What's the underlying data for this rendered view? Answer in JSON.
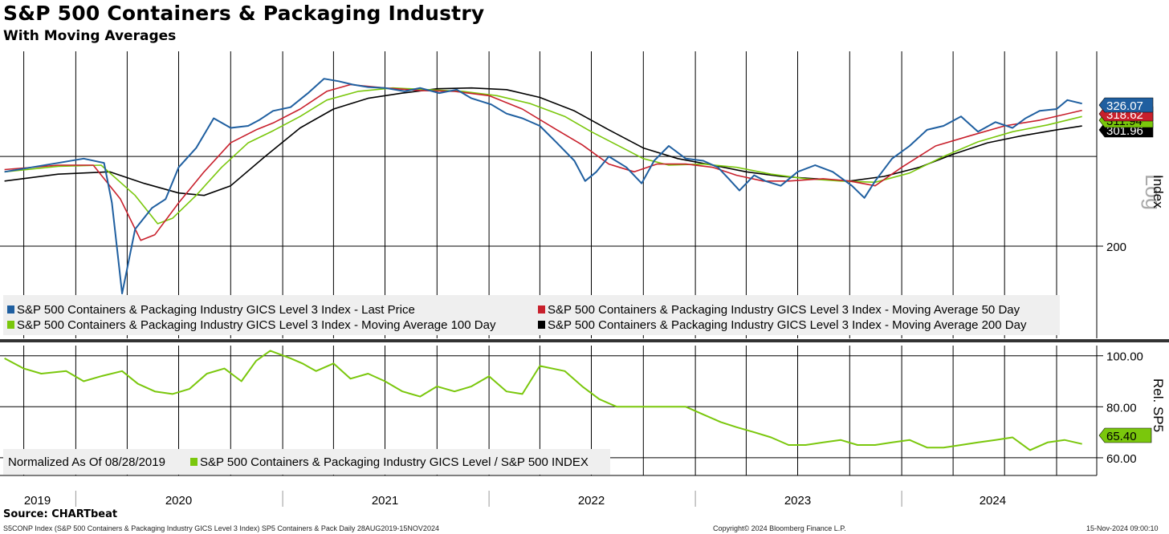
{
  "header": {
    "title": "S&P 500 Containers & Packaging Industry",
    "subtitle": "With Moving Averages"
  },
  "footer": {
    "source": "Source: CHARTbeat",
    "ticker_info": "S5CONP Index (S&P 500 Containers & Packaging Industry GICS Level 3 Index) SP5 Containers & Pack  Daily 28AUG2019-15NOV2024",
    "copyright": "Copyright© 2024 Bloomberg Finance L.P.",
    "timestamp": "15-Nov-2024 09:00:10"
  },
  "chart_data": [
    {
      "type": "line",
      "panel": "price",
      "scale": "log",
      "ylabel": "Index",
      "scale_label": "Log",
      "y_ticks": [
        200
      ],
      "ylim": [
        145,
        390
      ],
      "grid": true,
      "legend_position": "bottom-left",
      "last_values": {
        "last_price": "326.07",
        "ma50": "318.62",
        "ma100": "311.94",
        "ma200": "301.96"
      },
      "series": [
        {
          "name": "S&P 500 Containers & Packaging Industry GICS Level 3 Index - Last Price",
          "color": "#1f5fa0",
          "x": [
            "2019-08-28",
            "2019-10-15",
            "2019-12-01",
            "2020-01-15",
            "2020-02-20",
            "2020-03-05",
            "2020-03-23",
            "2020-04-15",
            "2020-05-15",
            "2020-06-08",
            "2020-07-01",
            "2020-08-01",
            "2020-09-01",
            "2020-10-01",
            "2020-11-01",
            "2020-11-20",
            "2020-12-15",
            "2021-01-15",
            "2021-02-15",
            "2021-03-15",
            "2021-04-10",
            "2021-05-05",
            "2021-06-01",
            "2021-07-01",
            "2021-08-05",
            "2021-09-01",
            "2021-10-05",
            "2021-11-05",
            "2021-12-01",
            "2022-01-05",
            "2022-02-01",
            "2022-03-01",
            "2022-04-01",
            "2022-05-01",
            "2022-06-01",
            "2022-06-20",
            "2022-07-10",
            "2022-08-01",
            "2022-09-01",
            "2022-09-28",
            "2022-10-20",
            "2022-11-15",
            "2022-12-15",
            "2023-01-15",
            "2023-02-10",
            "2023-03-01",
            "2023-03-20",
            "2023-04-15",
            "2023-05-05",
            "2023-06-01",
            "2023-07-01",
            "2023-08-01",
            "2023-09-01",
            "2023-10-05",
            "2023-10-27",
            "2023-11-15",
            "2023-12-15",
            "2024-01-15",
            "2024-02-15",
            "2024-03-15",
            "2024-04-15",
            "2024-05-15",
            "2024-06-15",
            "2024-07-15",
            "2024-08-07",
            "2024-09-01",
            "2024-10-01",
            "2024-10-20",
            "2024-11-15"
          ],
          "values": [
            258,
            262,
            266,
            270,
            266,
            232,
            170,
            212,
            228,
            235,
            262,
            280,
            310,
            300,
            302,
            308,
            318,
            322,
            338,
            355,
            352,
            348,
            345,
            344,
            340,
            344,
            338,
            342,
            332,
            325,
            315,
            310,
            302,
            285,
            268,
            250,
            258,
            272,
            262,
            248,
            268,
            282,
            270,
            268,
            262,
            252,
            242,
            255,
            250,
            246,
            258,
            264,
            258,
            246,
            236,
            250,
            270,
            282,
            298,
            302,
            312,
            296,
            306,
            300,
            310,
            318,
            320,
            330,
            326
          ]
        },
        {
          "name": "S&P 500 Containers & Packaging Industry GICS Level 3 Index - Moving Average 50 Day",
          "color": "#c8202c",
          "x": [
            "2019-08-28",
            "2019-12-01",
            "2020-02-01",
            "2020-03-20",
            "2020-04-25",
            "2020-05-20",
            "2020-07-01",
            "2020-08-15",
            "2020-10-01",
            "2020-11-15",
            "2020-12-15",
            "2021-02-01",
            "2021-03-20",
            "2021-05-01",
            "2021-07-01",
            "2021-09-01",
            "2021-11-01",
            "2022-01-01",
            "2022-03-01",
            "2022-05-01",
            "2022-06-15",
            "2022-08-01",
            "2022-09-15",
            "2022-10-25",
            "2022-12-15",
            "2023-02-01",
            "2023-03-15",
            "2023-05-01",
            "2023-06-15",
            "2023-08-15",
            "2023-10-01",
            "2023-11-15",
            "2024-01-01",
            "2024-03-01",
            "2024-05-01",
            "2024-07-01",
            "2024-09-01",
            "2024-11-15"
          ],
          "values": [
            260,
            264,
            264,
            235,
            204,
            208,
            232,
            258,
            285,
            298,
            305,
            320,
            340,
            348,
            344,
            341,
            340,
            335,
            320,
            298,
            283,
            265,
            258,
            265,
            265,
            262,
            255,
            250,
            250,
            252,
            250,
            246,
            262,
            282,
            292,
            302,
            308,
            318.62
          ]
        },
        {
          "name": "S&P 500 Containers & Packaging Industry GICS Level 3 Index - Moving Average 100 Day",
          "color": "#7ac70c",
          "x": [
            "2019-08-28",
            "2019-12-01",
            "2020-02-15",
            "2020-04-15",
            "2020-05-25",
            "2020-06-20",
            "2020-08-01",
            "2020-09-15",
            "2020-11-01",
            "2020-12-15",
            "2021-02-01",
            "2021-03-20",
            "2021-05-15",
            "2021-07-15",
            "2021-09-15",
            "2021-11-15",
            "2022-01-15",
            "2022-03-15",
            "2022-05-15",
            "2022-07-01",
            "2022-08-15",
            "2022-10-01",
            "2022-11-15",
            "2023-01-15",
            "2023-03-15",
            "2023-05-15",
            "2023-07-15",
            "2023-09-15",
            "2023-11-15",
            "2024-01-15",
            "2024-03-15",
            "2024-05-15",
            "2024-07-15",
            "2024-09-15",
            "2024-11-15"
          ],
          "values": [
            258,
            263,
            264,
            238,
            216,
            220,
            238,
            262,
            285,
            297,
            312,
            330,
            340,
            344,
            342,
            340,
            335,
            326,
            312,
            296,
            283,
            270,
            264,
            265,
            262,
            256,
            252,
            250,
            249,
            257,
            272,
            286,
            296,
            303,
            311.94
          ]
        },
        {
          "name": "S&P 500 Containers & Packaging Industry GICS Level 3 Index - Moving Average 200 Day",
          "color": "#000000",
          "x": [
            "2019-08-28",
            "2019-12-01",
            "2020-03-01",
            "2020-05-01",
            "2020-07-01",
            "2020-08-15",
            "2020-10-01",
            "2020-12-01",
            "2021-02-01",
            "2021-04-01",
            "2021-06-01",
            "2021-08-01",
            "2021-10-01",
            "2021-12-01",
            "2022-02-01",
            "2022-04-01",
            "2022-06-01",
            "2022-08-01",
            "2022-10-01",
            "2022-12-01",
            "2023-02-01",
            "2023-04-01",
            "2023-06-01",
            "2023-08-01",
            "2023-10-01",
            "2023-12-01",
            "2024-02-01",
            "2024-04-01",
            "2024-06-01",
            "2024-08-01",
            "2024-10-01",
            "2024-11-15"
          ],
          "values": [
            250,
            256,
            258,
            248,
            240,
            238,
            246,
            272,
            300,
            320,
            332,
            338,
            343,
            344,
            342,
            333,
            318,
            298,
            280,
            270,
            264,
            258,
            254,
            252,
            250,
            254,
            262,
            274,
            285,
            292,
            298,
            301.96
          ]
        }
      ]
    },
    {
      "type": "line",
      "panel": "relative",
      "ylabel": "Rel. SP5",
      "y_ticks": [
        100.0,
        80.0,
        60.0
      ],
      "ylim": [
        54,
        104
      ],
      "grid": true,
      "legend_position": "bottom-left",
      "legend_note": "Normalized As Of 08/28/2019",
      "last_value": "65.40",
      "series": [
        {
          "name": "S&P 500 Containers & Packaging Industry GICS Level / S&P 500 INDEX",
          "color": "#7ac70c",
          "x": [
            "2019-08-28",
            "2019-10-01",
            "2019-11-01",
            "2019-12-15",
            "2020-01-15",
            "2020-02-15",
            "2020-03-23",
            "2020-04-20",
            "2020-05-20",
            "2020-06-20",
            "2020-07-20",
            "2020-08-20",
            "2020-09-20",
            "2020-10-20",
            "2020-11-15",
            "2020-12-10",
            "2021-01-15",
            "2021-02-05",
            "2021-03-01",
            "2021-04-01",
            "2021-05-01",
            "2021-06-01",
            "2021-07-01",
            "2021-08-01",
            "2021-09-01",
            "2021-10-01",
            "2021-11-01",
            "2021-12-01",
            "2022-01-01",
            "2022-02-01",
            "2022-03-01",
            "2022-04-01",
            "2022-05-15",
            "2022-06-15",
            "2022-07-15",
            "2022-08-15",
            "2022-09-15",
            "2022-10-15",
            "2022-11-15",
            "2022-12-15",
            "2023-01-15",
            "2023-02-15",
            "2023-03-15",
            "2023-04-15",
            "2023-05-15",
            "2023-06-15",
            "2023-07-15",
            "2023-08-15",
            "2023-09-15",
            "2023-10-15",
            "2023-11-15",
            "2023-12-15",
            "2024-01-15",
            "2024-02-15",
            "2024-03-15",
            "2024-04-15",
            "2024-05-15",
            "2024-06-15",
            "2024-07-15",
            "2024-08-15",
            "2024-09-15",
            "2024-10-15",
            "2024-11-15"
          ],
          "values": [
            99,
            95,
            93,
            94,
            90,
            92,
            94,
            89,
            86,
            85,
            87,
            93,
            95,
            90,
            98,
            102,
            99,
            97,
            94,
            97,
            91,
            93,
            90,
            86,
            84,
            88,
            86,
            88,
            92,
            86,
            85,
            96,
            94,
            88,
            83,
            80,
            80,
            80,
            80,
            80,
            77,
            74,
            72,
            70,
            68,
            65,
            65,
            66,
            67,
            65,
            65,
            66,
            67,
            64,
            64,
            65,
            66,
            67,
            68,
            63,
            66,
            67,
            65.4
          ]
        }
      ]
    }
  ],
  "x_axis": {
    "years": [
      "2019",
      "2020",
      "2021",
      "2022",
      "2023",
      "2024"
    ]
  }
}
